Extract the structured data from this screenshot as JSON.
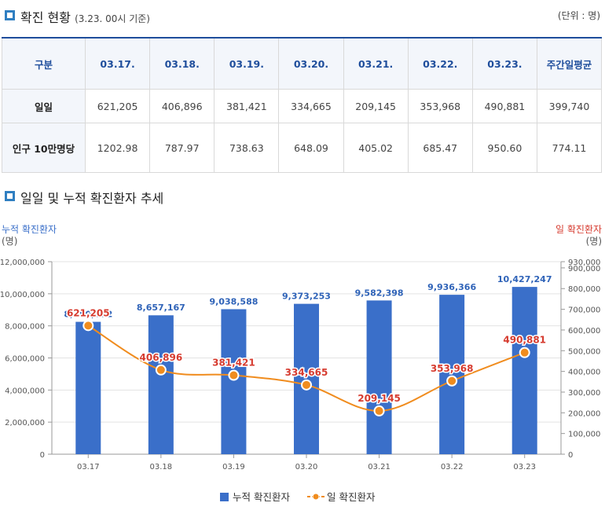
{
  "section1": {
    "title": "확진 현황",
    "subtitle": "(3.23. 00시 기준)",
    "unit": "(단위 : 명)"
  },
  "table": {
    "header": [
      "구분",
      "03.17.",
      "03.18.",
      "03.19.",
      "03.20.",
      "03.21.",
      "03.22.",
      "03.23.",
      "주간일평균"
    ],
    "rows": [
      {
        "label": "일일",
        "values": [
          "621,205",
          "406,896",
          "381,421",
          "334,665",
          "209,145",
          "353,968",
          "490,881",
          "399,740"
        ]
      },
      {
        "label": "인구 10만명당",
        "values": [
          "1202.98",
          "787.97",
          "738.63",
          "648.09",
          "405.02",
          "685.47",
          "950.60",
          "774.11"
        ]
      }
    ]
  },
  "section2": {
    "title": "일일 및 누적 확진환자 추세"
  },
  "chart_data": {
    "type": "bar+line",
    "categories": [
      "03.17",
      "03.18",
      "03.19",
      "03.20",
      "03.21",
      "03.22",
      "03.23"
    ],
    "series": [
      {
        "name": "누적 확진환자",
        "kind": "bar",
        "axis": "left",
        "color": "#3a6fc9",
        "values": [
          8250592,
          8657167,
          9038588,
          9373253,
          9582398,
          9936366,
          10427247
        ],
        "labels": [
          "8,250,592",
          "8,657,167",
          "9,038,588",
          "9,373,253",
          "9,582,398",
          "9,936,366",
          "10,427,247"
        ]
      },
      {
        "name": "일 확진환자",
        "kind": "line",
        "axis": "right",
        "color": "#f08c1e",
        "label_color": "#d63b2f",
        "values": [
          621205,
          406896,
          381421,
          334665,
          209145,
          353968,
          490881
        ],
        "labels": [
          "621,205",
          "406,896",
          "381,421",
          "334,665",
          "209,145",
          "353,968",
          "490,881"
        ]
      }
    ],
    "left_axis": {
      "title": "누적 확진환자",
      "unit": "(명)",
      "color": "#3a6fc9",
      "ylim": [
        0,
        12000000
      ],
      "ticks": [
        0,
        2000000,
        4000000,
        6000000,
        8000000,
        10000000,
        12000000
      ],
      "tick_labels": [
        "0",
        "2,000,000",
        "4,000,000",
        "6,000,000",
        "8,000,000",
        "10,000,000",
        "12,000,000"
      ]
    },
    "right_axis": {
      "title": "일 확진환자",
      "unit": "(명)",
      "color": "#d63b2f",
      "ylim": [
        0,
        930000
      ],
      "ticks": [
        0,
        100000,
        200000,
        300000,
        400000,
        500000,
        600000,
        700000,
        800000,
        900000,
        930000
      ],
      "tick_labels": [
        "0",
        "100,000",
        "200,000",
        "300,000",
        "400,000",
        "500,000",
        "600,000",
        "700,000",
        "800,000",
        "900,000",
        "930,000"
      ]
    },
    "grid": true,
    "legend": "bottom"
  }
}
